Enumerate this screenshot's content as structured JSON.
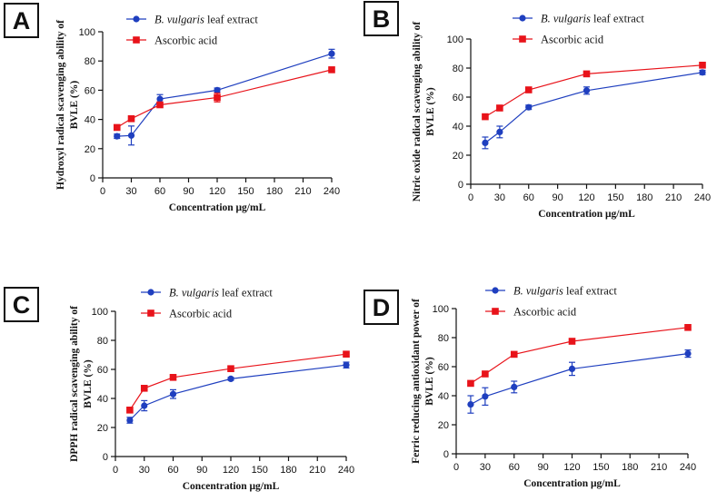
{
  "chart_data": [
    {
      "panel": "A",
      "type": "line",
      "xlabel": "Concentration μg/mL",
      "ylabel": "Hydroxyl radical scavenging ability of BVLE (%)",
      "xlim": [
        0,
        240
      ],
      "ylim": [
        0,
        100
      ],
      "xticks": [
        0,
        30,
        60,
        90,
        120,
        150,
        180,
        210,
        240
      ],
      "yticks": [
        0,
        20,
        40,
        60,
        80,
        100
      ],
      "legend": [
        "B. vulgaris leaf extract",
        "Ascorbic acid"
      ],
      "series": [
        {
          "name": "B. vulgaris leaf extract",
          "color": "#1f3fbf",
          "marker": "circle",
          "x": [
            15,
            30,
            60,
            120,
            240
          ],
          "y": [
            28.5,
            29,
            54,
            60,
            85
          ],
          "err": [
            1.5,
            6.5,
            3,
            1.5,
            3
          ]
        },
        {
          "name": "Ascorbic acid",
          "color": "#e8131a",
          "marker": "square",
          "x": [
            15,
            30,
            60,
            120,
            240
          ],
          "y": [
            34.5,
            40.5,
            50,
            55,
            74
          ],
          "err": [
            0,
            0,
            0,
            3,
            0
          ]
        }
      ]
    },
    {
      "panel": "B",
      "type": "line",
      "xlabel": "Concentration μg/mL",
      "ylabel": "Nitric oxide radical scavenging ability of BVLE (%)",
      "xlim": [
        0,
        240
      ],
      "ylim": [
        0,
        100
      ],
      "xticks": [
        0,
        30,
        60,
        90,
        120,
        150,
        180,
        210,
        240
      ],
      "yticks": [
        0,
        20,
        40,
        60,
        80,
        100
      ],
      "legend": [
        "B. vulgaris leaf extract",
        "Ascorbic acid"
      ],
      "series": [
        {
          "name": "B. vulgaris leaf extract",
          "color": "#1f3fbf",
          "marker": "circle",
          "x": [
            15,
            30,
            60,
            120,
            240
          ],
          "y": [
            28.5,
            36,
            53,
            64.5,
            77
          ],
          "err": [
            4,
            4,
            1.5,
            2.5,
            1.5
          ]
        },
        {
          "name": "Ascorbic acid",
          "color": "#e8131a",
          "marker": "square",
          "x": [
            15,
            30,
            60,
            120,
            240
          ],
          "y": [
            46.5,
            52.5,
            65,
            76,
            82
          ],
          "err": [
            0,
            0,
            0,
            0,
            0
          ]
        }
      ]
    },
    {
      "panel": "C",
      "type": "line",
      "xlabel": "Concentration μg/mL",
      "ylabel": "DPPH radical scavenging ability of BVLE (%)",
      "xlim": [
        0,
        240
      ],
      "ylim": [
        0,
        100
      ],
      "xticks": [
        0,
        30,
        60,
        90,
        120,
        150,
        180,
        210,
        240
      ],
      "yticks": [
        0,
        20,
        40,
        60,
        80,
        100
      ],
      "legend": [
        "B. vulgaris leaf extract",
        "Ascorbic acid"
      ],
      "series": [
        {
          "name": "B. vulgaris leaf extract",
          "color": "#1f3fbf",
          "marker": "circle",
          "x": [
            15,
            30,
            60,
            120,
            240
          ],
          "y": [
            25,
            35,
            43,
            53.5,
            63
          ],
          "err": [
            2,
            3.5,
            3,
            1,
            2
          ]
        },
        {
          "name": "Ascorbic acid",
          "color": "#e8131a",
          "marker": "square",
          "x": [
            15,
            30,
            60,
            120,
            240
          ],
          "y": [
            32,
            47,
            54.5,
            60.5,
            70.5
          ],
          "err": [
            0,
            0,
            0,
            0,
            0
          ]
        }
      ]
    },
    {
      "panel": "D",
      "type": "line",
      "xlabel": "Concentration μg/mL",
      "ylabel": "Ferric reducing antioxidant power of BVLE (%)",
      "xlim": [
        0,
        240
      ],
      "ylim": [
        0,
        100
      ],
      "xticks": [
        0,
        30,
        60,
        90,
        120,
        150,
        180,
        210,
        240
      ],
      "yticks": [
        0,
        20,
        40,
        60,
        80,
        100
      ],
      "legend": [
        "B. vulgaris leaf extract",
        "Ascorbic acid"
      ],
      "series": [
        {
          "name": "B. vulgaris leaf extract",
          "color": "#1f3fbf",
          "marker": "circle",
          "x": [
            15,
            30,
            60,
            120,
            240
          ],
          "y": [
            34,
            39.5,
            46,
            58.5,
            69
          ],
          "err": [
            6,
            6,
            4,
            4.5,
            2.5
          ]
        },
        {
          "name": "Ascorbic acid",
          "color": "#e8131a",
          "marker": "square",
          "x": [
            15,
            30,
            60,
            120,
            240
          ],
          "y": [
            48.5,
            55,
            68.5,
            77.5,
            87
          ],
          "err": [
            0,
            0,
            0,
            0,
            0
          ]
        }
      ]
    }
  ]
}
